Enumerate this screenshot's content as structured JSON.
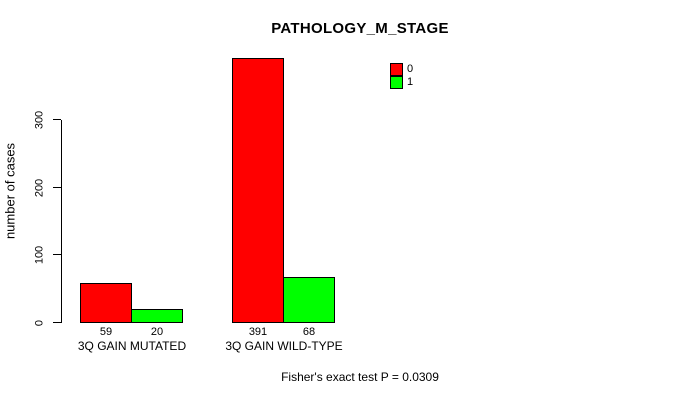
{
  "chart_data": {
    "type": "bar",
    "title": "PATHOLOGY_M_STAGE",
    "xlabel": "",
    "ylabel": "number of cases",
    "axis_range": [
      0,
      300
    ],
    "ylim": [
      0,
      395
    ],
    "yticks": [
      0,
      100,
      200,
      300
    ],
    "grid": false,
    "legend_position": "top-right",
    "categories": [
      "3Q GAIN MUTATED",
      "3Q GAIN WILD-TYPE"
    ],
    "series": [
      {
        "name": "0",
        "color": "#ff0000",
        "values": [
          59,
          391
        ]
      },
      {
        "name": "1",
        "color": "#00ff00",
        "values": [
          20,
          68
        ]
      }
    ],
    "bar_value_labels_shown": true,
    "footer": "Fisher's exact test P = 0.0309"
  },
  "colors": {
    "series0": "#ff0000",
    "series1": "#00ff00",
    "axis": "#000000",
    "background": "#ffffff"
  }
}
